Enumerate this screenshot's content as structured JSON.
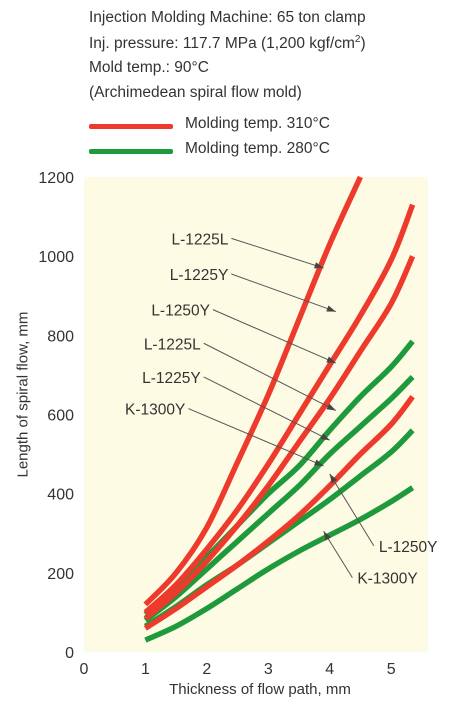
{
  "header": {
    "lines": [
      "Injection Molding Machine: 65 ton clamp",
      "Inj. pressure: 117.7 MPa (1,200 kgf/cm",
      "Mold temp.: 90°C",
      "(Archimedean spiral flow mold)"
    ],
    "pressure_superscript": "2",
    "pressure_close": ")"
  },
  "legend": [
    {
      "label": "Molding temp. 310°C",
      "color": "#ee3a2c"
    },
    {
      "label": "Molding temp. 280°C",
      "color": "#1e9a3c"
    }
  ],
  "chart_data": {
    "type": "line",
    "title": "",
    "xlabel": "Thickness of flow path, mm",
    "ylabel": "Length of spiral flow, mm",
    "xlim": [
      0,
      5.6
    ],
    "ylim": [
      0,
      1200
    ],
    "xticks": [
      0,
      1,
      2,
      3,
      4,
      5
    ],
    "yticks": [
      0,
      200,
      400,
      600,
      800,
      1000,
      1200
    ],
    "grid": false,
    "background": "#fdfbe3",
    "series": [
      {
        "name": "L-1225L",
        "group": "Molding temp. 310°C",
        "color": "#ee3a2c",
        "x": [
          1,
          1.5,
          2,
          2.5,
          3,
          3.5,
          4,
          4.5
        ],
        "y": [
          120,
          200,
          315,
          480,
          650,
          840,
          1030,
          1200
        ]
      },
      {
        "name": "L-1225Y",
        "group": "Molding temp. 310°C",
        "color": "#ee3a2c",
        "x": [
          1,
          1.5,
          2,
          2.5,
          3,
          3.5,
          4,
          4.5,
          5,
          5.35
        ],
        "y": [
          100,
          170,
          260,
          360,
          475,
          600,
          725,
          850,
          990,
          1130
        ]
      },
      {
        "name": "L-1250Y",
        "group": "Molding temp. 310°C",
        "color": "#ee3a2c",
        "x": [
          1,
          1.5,
          2,
          2.5,
          3,
          3.5,
          4,
          4.5,
          5,
          5.35
        ],
        "y": [
          85,
          150,
          230,
          320,
          420,
          530,
          640,
          760,
          880,
          1000
        ]
      },
      {
        "name": "K-1300Y",
        "group": "Molding temp. 310°C",
        "color": "#ee3a2c",
        "x": [
          1,
          1.5,
          2,
          2.5,
          3,
          3.5,
          4,
          4.5,
          5,
          5.35
        ],
        "y": [
          60,
          110,
          165,
          220,
          280,
          345,
          420,
          500,
          575,
          645
        ]
      },
      {
        "name": "L-1225L",
        "group": "Molding temp. 280°C",
        "color": "#1e9a3c",
        "x": [
          1,
          1.5,
          2,
          2.5,
          3,
          3.5,
          4,
          4.5,
          5,
          5.35
        ],
        "y": [
          95,
          160,
          240,
          320,
          400,
          470,
          560,
          645,
          720,
          785
        ]
      },
      {
        "name": "L-1225Y",
        "group": "Molding temp. 280°C",
        "color": "#1e9a3c",
        "x": [
          1,
          1.5,
          2,
          2.5,
          3,
          3.5,
          4,
          4.5,
          5,
          5.35
        ],
        "y": [
          80,
          140,
          210,
          280,
          350,
          420,
          500,
          570,
          640,
          695
        ]
      },
      {
        "name": "L-1250Y",
        "group": "Molding temp. 280°C",
        "color": "#1e9a3c",
        "x": [
          1,
          1.5,
          2,
          2.5,
          3,
          3.5,
          4,
          4.5,
          5,
          5.35
        ],
        "y": [
          65,
          115,
          170,
          220,
          275,
          330,
          385,
          445,
          505,
          560
        ]
      },
      {
        "name": "K-1300Y",
        "group": "Molding temp. 280°C",
        "color": "#1e9a3c",
        "x": [
          1,
          1.5,
          2,
          2.5,
          3,
          3.5,
          4,
          4.5,
          5,
          5.35
        ],
        "y": [
          30,
          65,
          110,
          160,
          210,
          255,
          295,
          335,
          380,
          415
        ]
      }
    ],
    "annotations": [
      {
        "text": "L-1225L",
        "side": "left",
        "x": 2.35,
        "y": 1045,
        "arrow_x": 3.9,
        "arrow_y": 970
      },
      {
        "text": "L-1225Y",
        "side": "left",
        "x": 2.35,
        "y": 955,
        "arrow_x": 4.1,
        "arrow_y": 860
      },
      {
        "text": "L-1250Y",
        "side": "left",
        "x": 2.05,
        "y": 865,
        "arrow_x": 4.1,
        "arrow_y": 730
      },
      {
        "text": "L-1225L",
        "side": "left",
        "x": 1.9,
        "y": 780,
        "arrow_x": 4.1,
        "arrow_y": 610
      },
      {
        "text": "L-1225Y",
        "side": "left",
        "x": 1.9,
        "y": 695,
        "arrow_x": 4.0,
        "arrow_y": 535
      },
      {
        "text": "K-1300Y",
        "side": "left",
        "x": 1.65,
        "y": 615,
        "arrow_x": 3.9,
        "arrow_y": 470
      },
      {
        "text": "L-1250Y",
        "side": "right",
        "x": 4.8,
        "y": 268,
        "arrow_x": 4.0,
        "arrow_y": 450
      },
      {
        "text": "K-1300Y",
        "side": "right",
        "x": 4.45,
        "y": 188,
        "arrow_x": 3.9,
        "arrow_y": 305
      }
    ]
  }
}
